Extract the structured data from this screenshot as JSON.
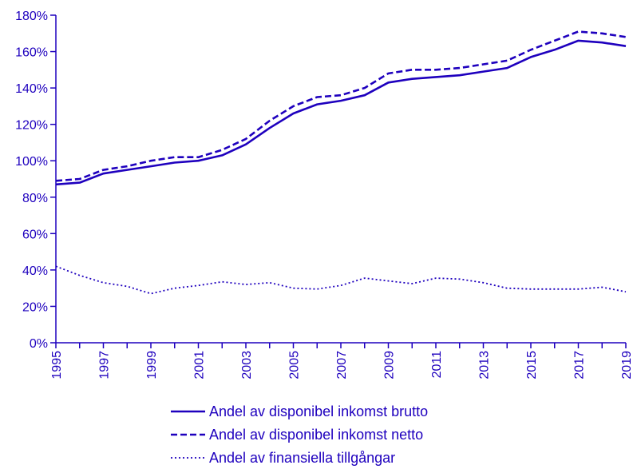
{
  "chart_data": {
    "type": "line",
    "title": "",
    "xlabel": "",
    "ylabel": "",
    "x": [
      1995,
      1996,
      1997,
      1998,
      1999,
      2000,
      2001,
      2002,
      2003,
      2004,
      2005,
      2006,
      2007,
      2008,
      2009,
      2010,
      2011,
      2012,
      2013,
      2014,
      2015,
      2016,
      2017,
      2018,
      2019
    ],
    "xlim": [
      1995,
      2019
    ],
    "x_ticks": [
      "1995",
      "1997",
      "1999",
      "2001",
      "2003",
      "2005",
      "2007",
      "2009",
      "2011",
      "2013",
      "2015",
      "2017",
      "2019"
    ],
    "ylim": [
      0,
      180
    ],
    "y_ticks": [
      0,
      20,
      40,
      60,
      80,
      100,
      120,
      140,
      160,
      180
    ],
    "y_tick_labels": [
      "0%",
      "20%",
      "40%",
      "60%",
      "80%",
      "100%",
      "120%",
      "140%",
      "160%",
      "180%"
    ],
    "grid": false,
    "legend_position": "bottom",
    "color": "#1e00be",
    "series": [
      {
        "name": "Andel av disponibel inkomst brutto",
        "style": "solid",
        "values": [
          87,
          88,
          93,
          95,
          97,
          99,
          100,
          103,
          109,
          118,
          126,
          131,
          133,
          136,
          143,
          145,
          146,
          147,
          149,
          151,
          157,
          161,
          166,
          165,
          163
        ]
      },
      {
        "name": "Andel av disponibel inkomst netto",
        "style": "dashed",
        "values": [
          89,
          90,
          95,
          97,
          100,
          102,
          102,
          106,
          112,
          122,
          130,
          135,
          136,
          140,
          148,
          150,
          150,
          151,
          153,
          155,
          161,
          166,
          171,
          170,
          168
        ]
      },
      {
        "name": "Andel av finansiella tillgångar",
        "style": "dotted",
        "values": [
          42,
          37,
          33,
          31,
          27,
          30,
          31.5,
          33.5,
          32,
          33,
          30,
          29.5,
          31.5,
          35.5,
          34,
          32.5,
          35.5,
          35,
          33,
          30,
          29.5,
          29.5,
          29.5,
          30.5,
          28
        ]
      }
    ]
  }
}
